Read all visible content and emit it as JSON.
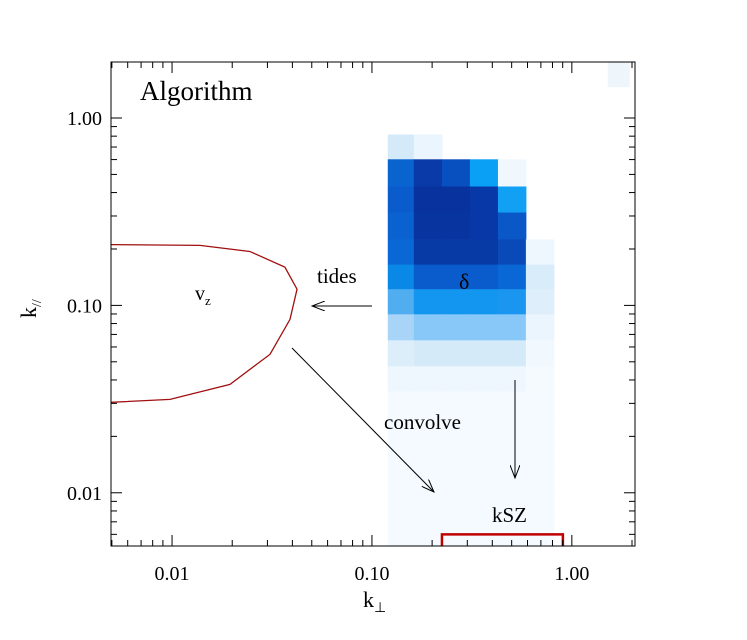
{
  "chart_data": {
    "type": "heatmap",
    "title": "Algorithm",
    "xlabel": "k",
    "xlabel_sub": "⊥",
    "ylabel": "k",
    "ylabel_sub": "//",
    "xscale": "log",
    "yscale": "log",
    "xlim": [
      0.00495,
      2.07
    ],
    "ylim": [
      0.0052,
      1.99
    ],
    "xticks": [
      {
        "value": 0.01,
        "label": "0.01"
      },
      {
        "value": 0.1,
        "label": "0.10"
      },
      {
        "value": 1,
        "label": "1.00"
      }
    ],
    "yticks": [
      {
        "value": 0.01,
        "label": "0.01"
      },
      {
        "value": 0.1,
        "label": "0.10"
      },
      {
        "value": 1,
        "label": "1.00"
      }
    ],
    "minor_ticks": true,
    "x_edges": [
      0.12,
      0.162,
      0.224,
      0.309,
      0.427,
      0.589,
      0.813
    ],
    "y_edges": [
      0.817,
      0.602,
      0.431,
      0.313,
      0.225,
      0.165,
      0.122,
      0.0896,
      0.0651,
      0.0473,
      0.0348,
      0.0253,
      0.0186,
      0.0135,
      0.0099,
      0.0072,
      0.0052
    ],
    "colors": [
      [
        "#d4eaf8",
        "#eaf5fd",
        null,
        null,
        null,
        null
      ],
      [
        "#0a64d0",
        "#0a3aa8",
        "#0850c0",
        "#0aa0f5",
        "#f0f8fe",
        null
      ],
      [
        "#0a5ccc",
        "#08329e",
        "#08329e",
        "#0838a8",
        "#12a0f5",
        null
      ],
      [
        "#0a62d0",
        "#08349f",
        "#08349f",
        "#0838a8",
        "#0a58c8",
        null
      ],
      [
        "#0a68d6",
        "#083aa6",
        "#083aa6",
        "#083aa6",
        "#0a4ab8",
        "#eef7fd"
      ],
      [
        "#0a88e8",
        "#0a5ccc",
        "#0a5ccc",
        "#0a5ccc",
        "#0a68d6",
        "#d8ecfa"
      ],
      [
        "#50aef0",
        "#1296f0",
        "#1296f0",
        "#1296f0",
        "#1a96f0",
        "#deeffb"
      ],
      [
        "#a8d4f8",
        "#88c8f8",
        "#88c8f8",
        "#88c8f8",
        "#88c8f8",
        "#eaf5fd"
      ],
      [
        "#ddeefb",
        "#d4eaf9",
        "#d4eaf9",
        "#d4eaf9",
        "#d4eaf9",
        "#f2f9fe"
      ],
      [
        "#eef7fd",
        "#eef7fd",
        "#eef7fd",
        "#eef7fd",
        "#eef7fd",
        "#f4fafe"
      ],
      [
        "#f4faff",
        "#f4faff",
        "#f4faff",
        "#f4faff",
        "#f4faff",
        "#f4faff"
      ],
      [
        "#f4faff",
        "#f4faff",
        "#f4faff",
        "#f4faff",
        "#f4faff",
        "#f4faff"
      ],
      [
        "#f4faff",
        "#f4faff",
        "#f4faff",
        "#f4faff",
        "#f4faff",
        "#f4faff"
      ],
      [
        "#f4faff",
        "#f4faff",
        "#f4faff",
        "#f4faff",
        "#f4faff",
        "#f4faff"
      ],
      [
        "#f4faff",
        "#f4faff",
        "#f4faff",
        "#f4faff",
        "#f4faff",
        "#f4faff"
      ],
      [
        "#f4faff",
        "#f4faff",
        "#f4faff",
        "#f4faff",
        "#f4faff",
        "#f4faff"
      ]
    ],
    "extra_cell": {
      "x": [
        1.51,
        1.95
      ],
      "y": [
        1.46,
        1.99
      ],
      "color": "#eef6fc"
    },
    "curve": {
      "color": "#a01010",
      "x": [
        0.00495,
        0.0138,
        0.0245,
        0.0367,
        0.0422,
        0.0389,
        0.0309,
        0.0195,
        0.00977,
        0.00495
      ],
      "y": [
        0.211,
        0.209,
        0.194,
        0.16,
        0.122,
        0.0842,
        0.0548,
        0.0379,
        0.0315,
        0.0304
      ]
    },
    "bracket": {
      "x": [
        0.224,
        0.902
      ],
      "y": 0.006,
      "color": "#c00000"
    },
    "annotations": {
      "tides": "tides",
      "delta": "δ",
      "vz": "v",
      "vz_sub": "z",
      "convolve": "convolve",
      "ksz": "kSZ"
    }
  }
}
